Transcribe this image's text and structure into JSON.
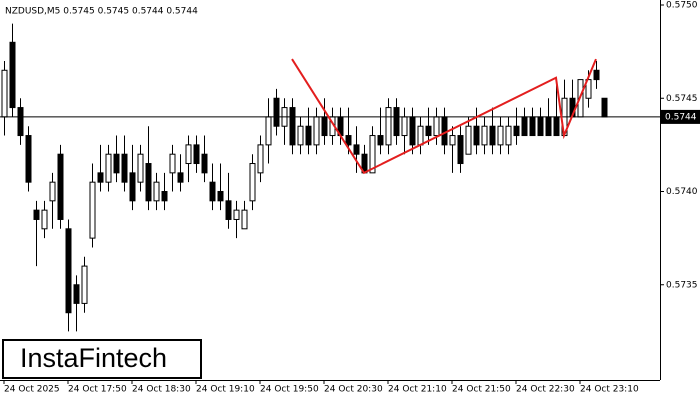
{
  "chart_data": {
    "type": "candlestick",
    "title": "NZDUSD,M5  0.5745 0.5745 0.5744 0.5744",
    "watermark": "InstaFintech",
    "ylim": [
      0.573,
      0.575
    ],
    "yticks": [
      {
        "value": 0.5735,
        "label": "0.5735"
      },
      {
        "value": 0.574,
        "label": "0.5740"
      },
      {
        "value": 0.5745,
        "label": "0.5745"
      },
      {
        "value": 0.575,
        "label": "0.5750"
      }
    ],
    "current_price": {
      "value": 0.5744,
      "label": "0.5744"
    },
    "categories": [
      "24 Oct 2025",
      null,
      null,
      null,
      null,
      null,
      null,
      null,
      "24 Oct 17:50",
      null,
      null,
      null,
      null,
      null,
      null,
      null,
      "24 Oct 18:30",
      null,
      null,
      null,
      null,
      null,
      null,
      null,
      "24 Oct 19:10",
      null,
      null,
      null,
      null,
      null,
      null,
      null,
      "24 Oct 19:50",
      null,
      null,
      null,
      null,
      null,
      null,
      null,
      "24 Oct 20:30",
      null,
      null,
      null,
      null,
      null,
      null,
      null,
      "24 Oct 21:10",
      null,
      null,
      null,
      null,
      null,
      null,
      null,
      "24 Oct 21:50",
      null,
      null,
      null,
      null,
      null,
      null,
      null,
      "24 Oct 22:30",
      null,
      null,
      null,
      null,
      null,
      null,
      null,
      "24 Oct 23:10",
      null,
      null,
      null
    ],
    "open": [
      0.5744,
      0.5748,
      0.57445,
      0.5743,
      0.5739,
      0.5738,
      0.57395,
      0.5742,
      0.5738,
      0.5735,
      0.5734,
      0.57375,
      0.5741,
      0.57405,
      0.5742,
      0.5742,
      0.5741,
      0.57405,
      0.57415,
      0.57395,
      0.574,
      0.5741,
      0.5741,
      0.57415,
      0.57425,
      0.5742,
      0.57405,
      0.574,
      0.57395,
      0.57385,
      0.5738,
      0.57395,
      0.5741,
      0.57425,
      0.5745,
      0.57435,
      0.57445,
      0.57425,
      0.57435,
      0.57425,
      0.5744,
      0.5743,
      0.5744,
      0.5743,
      0.57425,
      0.5742,
      0.5741,
      0.5743,
      0.57425,
      0.57445,
      0.5743,
      0.5744,
      0.57425,
      0.57435,
      0.5743,
      0.5744,
      0.57425,
      0.5743,
      0.5742,
      0.57435,
      0.57425,
      0.57435,
      0.57425,
      0.57425,
      0.57435,
      0.5744,
      0.5744,
      0.5744,
      0.5744,
      0.5744,
      0.5743,
      0.5745,
      0.5744,
      0.5745,
      0.57465,
      0.5745
    ],
    "high": [
      0.5747,
      0.5749,
      0.5745,
      0.57435,
      0.57395,
      0.57395,
      0.5741,
      0.57425,
      0.57385,
      0.57355,
      0.57365,
      0.57415,
      0.57425,
      0.57425,
      0.5743,
      0.5743,
      0.57425,
      0.57425,
      0.57435,
      0.5741,
      0.5741,
      0.57425,
      0.5742,
      0.5743,
      0.5743,
      0.5743,
      0.57415,
      0.57415,
      0.5741,
      0.57395,
      0.57395,
      0.5742,
      0.5743,
      0.5745,
      0.57455,
      0.5745,
      0.5745,
      0.5744,
      0.57445,
      0.57445,
      0.5745,
      0.57445,
      0.57445,
      0.57445,
      0.57435,
      0.57425,
      0.57435,
      0.57445,
      0.5745,
      0.5745,
      0.57445,
      0.57445,
      0.5744,
      0.57445,
      0.57445,
      0.57445,
      0.57435,
      0.57435,
      0.5744,
      0.57445,
      0.5744,
      0.57445,
      0.5744,
      0.5744,
      0.57445,
      0.57445,
      0.57445,
      0.57445,
      0.5745,
      0.5746,
      0.5746,
      0.5746,
      0.5746,
      0.57465,
      0.5747,
      0.5745
    ],
    "low": [
      0.5743,
      0.5744,
      0.57425,
      0.574,
      0.5736,
      0.57375,
      0.5738,
      0.5738,
      0.57325,
      0.57325,
      0.57335,
      0.5737,
      0.574,
      0.574,
      0.57405,
      0.574,
      0.5739,
      0.574,
      0.5739,
      0.5739,
      0.5739,
      0.574,
      0.574,
      0.57405,
      0.5741,
      0.57405,
      0.5739,
      0.5739,
      0.5738,
      0.57375,
      0.5738,
      0.5739,
      0.57405,
      0.57415,
      0.5743,
      0.57425,
      0.5742,
      0.5742,
      0.5742,
      0.5742,
      0.57425,
      0.57425,
      0.57425,
      0.5742,
      0.5741,
      0.5741,
      0.5741,
      0.5742,
      0.5742,
      0.57425,
      0.5742,
      0.5742,
      0.5742,
      0.57425,
      0.57425,
      0.5742,
      0.5741,
      0.5741,
      0.5742,
      0.5742,
      0.5742,
      0.5742,
      0.5742,
      0.5742,
      0.57425,
      0.5743,
      0.5743,
      0.5743,
      0.5743,
      0.5743,
      0.5743,
      0.5744,
      0.5744,
      0.57445,
      0.57455,
      0.5744
    ],
    "close": [
      0.57465,
      0.57445,
      0.5743,
      0.57405,
      0.57385,
      0.5739,
      0.57405,
      0.57385,
      0.57335,
      0.5734,
      0.5736,
      0.57405,
      0.57405,
      0.5742,
      0.5741,
      0.57405,
      0.57395,
      0.5742,
      0.57395,
      0.57405,
      0.57395,
      0.5742,
      0.57405,
      0.57425,
      0.57415,
      0.5741,
      0.57395,
      0.57395,
      0.57385,
      0.5739,
      0.5739,
      0.57415,
      0.57425,
      0.5744,
      0.57435,
      0.57445,
      0.57425,
      0.57435,
      0.57425,
      0.5744,
      0.5743,
      0.5744,
      0.5743,
      0.57425,
      0.5742,
      0.5741,
      0.5743,
      0.57425,
      0.57445,
      0.5743,
      0.5744,
      0.57425,
      0.57435,
      0.5743,
      0.5744,
      0.57425,
      0.5743,
      0.57415,
      0.57435,
      0.57425,
      0.57435,
      0.57425,
      0.57435,
      0.57435,
      0.5743,
      0.5743,
      0.5743,
      0.5743,
      0.5743,
      0.5743,
      0.5745,
      0.5744,
      0.5746,
      0.5746,
      0.5746,
      0.5744
    ],
    "pattern": {
      "color": "#e31e1e",
      "x": [
        36,
        45,
        69,
        70,
        74
      ],
      "y": [
        0.57471,
        0.5741,
        0.57461,
        0.5743,
        0.57471
      ]
    }
  }
}
